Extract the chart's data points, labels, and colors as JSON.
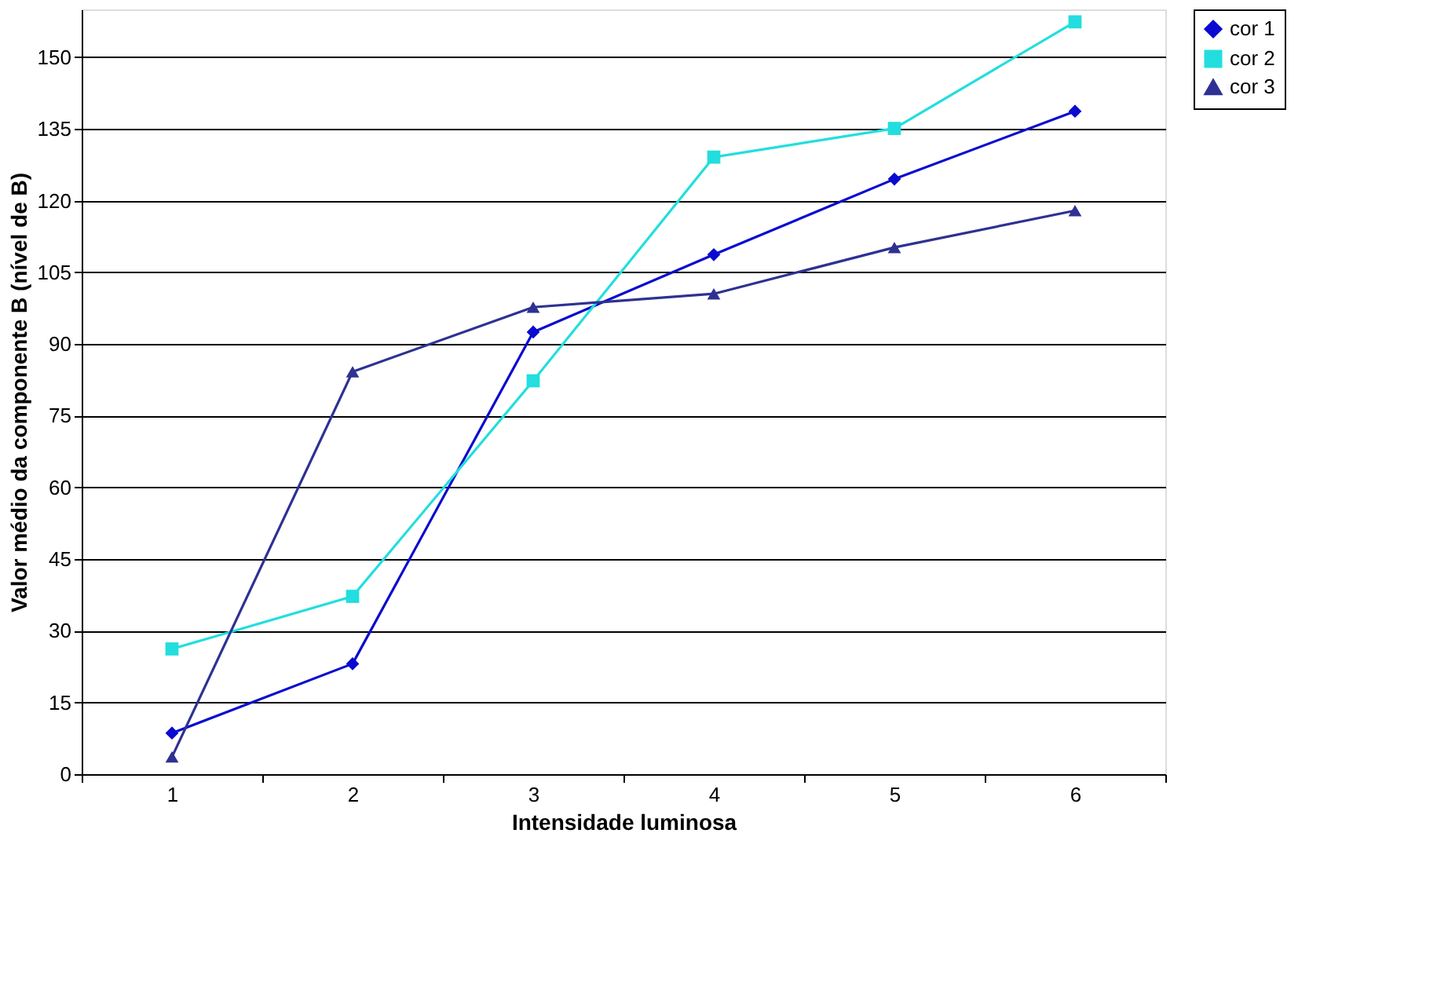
{
  "chart_data": {
    "type": "line",
    "xlabel": "Intensidade luminosa",
    "ylabel": "Valor médio da componente B (nível de B)",
    "categories": [
      "1",
      "2",
      "3",
      "4",
      "5",
      "6"
    ],
    "series": [
      {
        "name": "cor 1",
        "color": "#0a0ad0",
        "marker": "diamond",
        "values": [
          8.6,
          23.1,
          92.5,
          108.7,
          124.5,
          138.7
        ]
      },
      {
        "name": "cor 2",
        "color": "#22dede",
        "marker": "square",
        "values": [
          26.2,
          37.2,
          82.3,
          129.1,
          135.1,
          157.4
        ]
      },
      {
        "name": "cor 3",
        "color": "#2e3192",
        "marker": "triangle",
        "values": [
          3.6,
          84.2,
          97.7,
          100.5,
          110.2,
          117.9
        ]
      }
    ],
    "ylim": [
      0,
      160
    ],
    "yticks": [
      0,
      15,
      30,
      45,
      60,
      75,
      90,
      105,
      120,
      135,
      150
    ],
    "grid": "y",
    "legend": "right",
    "line_style": "solid"
  }
}
